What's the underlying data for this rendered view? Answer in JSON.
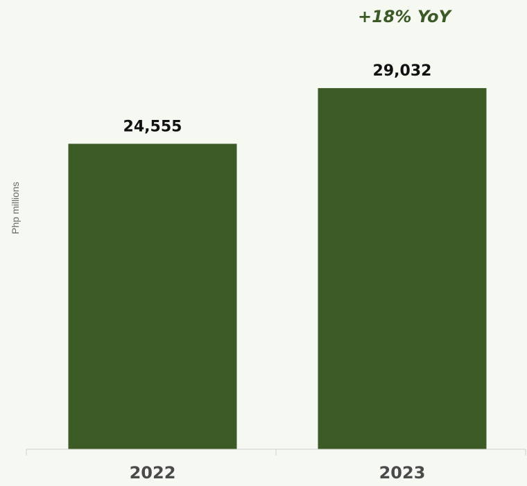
{
  "chart_data": {
    "type": "bar",
    "categories": [
      "2022",
      "2023"
    ],
    "values": [
      24555,
      29032
    ],
    "value_labels": [
      "24,555",
      "29,032"
    ],
    "title": "",
    "xlabel": "",
    "ylabel": "Php millions",
    "ylim": [
      0,
      35000
    ],
    "grid": false,
    "legend": "none",
    "annotation": "+18% YoY",
    "bar_color": "#3c5a25",
    "annotation_color": "#3c5a25"
  }
}
